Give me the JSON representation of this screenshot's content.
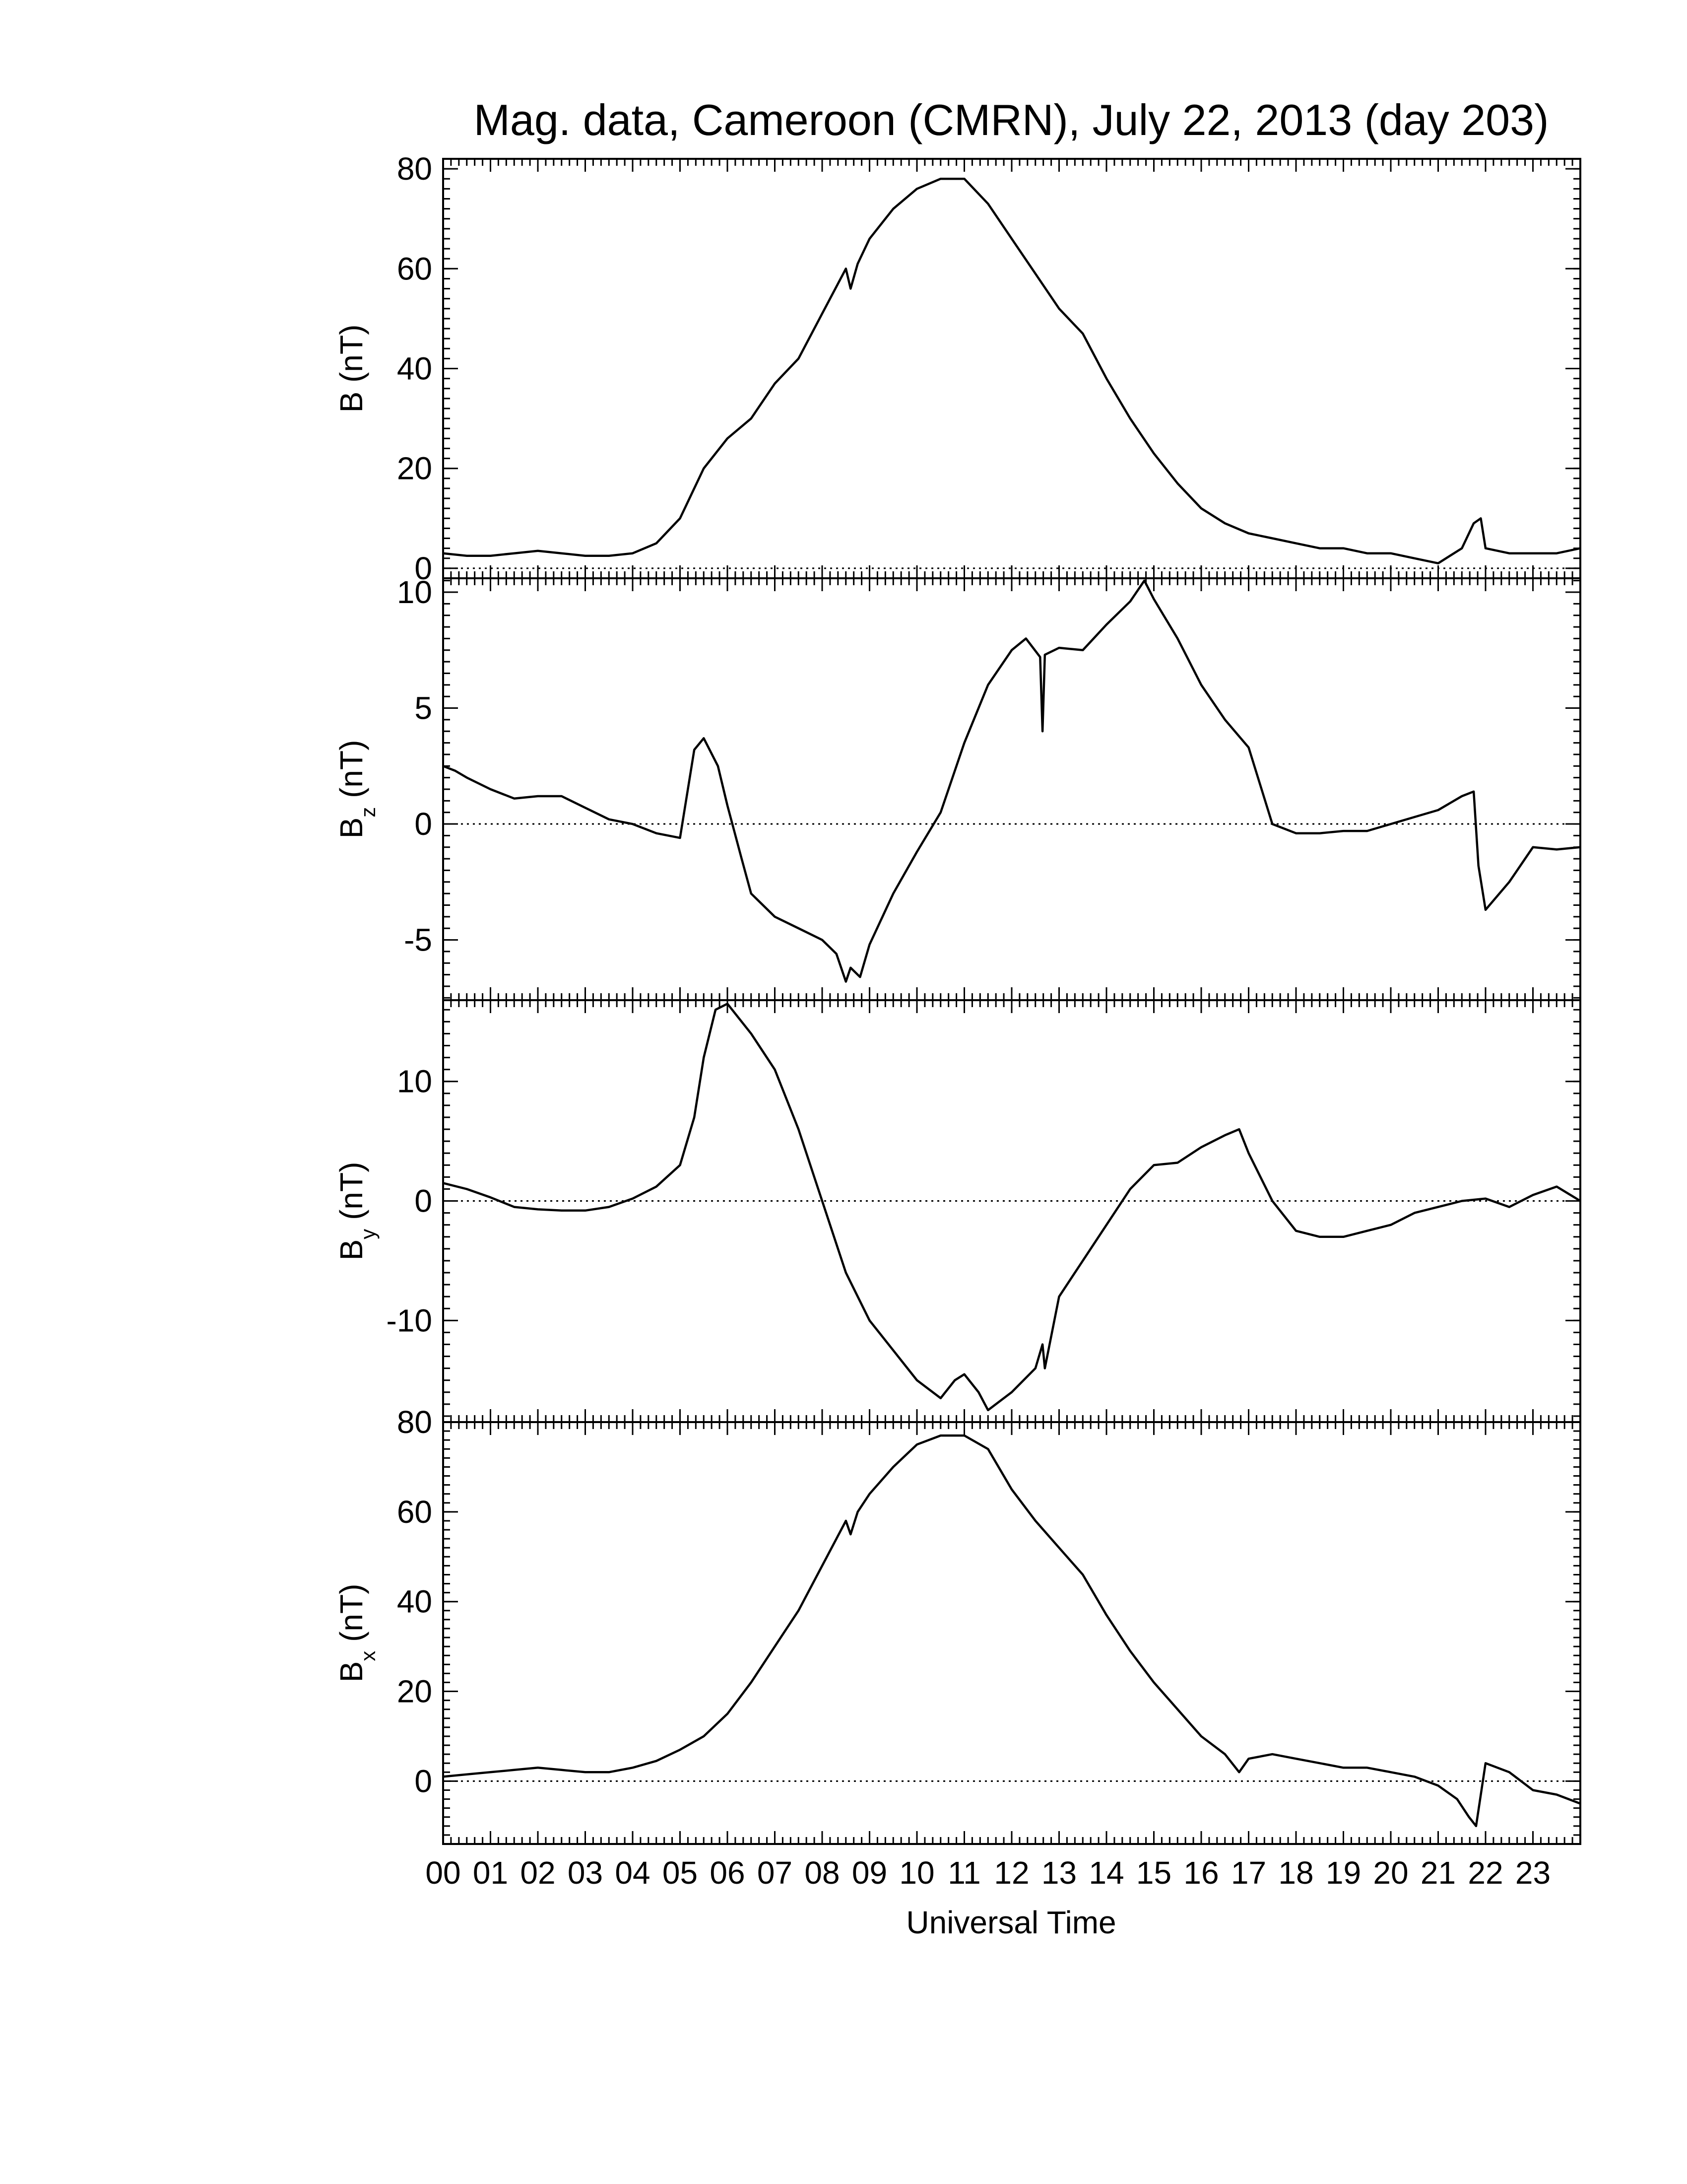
{
  "figure": {
    "title": "Mag. data, Cameroon (CMRN), July 22, 2013 (day 203)",
    "xlabel": "Universal Time",
    "x_tick_labels": [
      "00",
      "01",
      "02",
      "03",
      "04",
      "05",
      "06",
      "07",
      "08",
      "09",
      "10",
      "11",
      "12",
      "13",
      "14",
      "15",
      "16",
      "17",
      "18",
      "19",
      "20",
      "21",
      "22",
      "23"
    ],
    "line_color": "#000000",
    "zero_line_style": "dotted"
  },
  "chart_data": [
    {
      "type": "line",
      "panel": "B",
      "ylabel_main": "B",
      "ylabel_sub": "",
      "ylabel_unit": "(nT)",
      "xlim": [
        0,
        24
      ],
      "ylim": [
        -2,
        82
      ],
      "yticks": [
        0,
        20,
        40,
        60,
        80
      ],
      "x": [
        0,
        0.5,
        1,
        1.5,
        2,
        2.5,
        3,
        3.5,
        4,
        4.5,
        5,
        5.5,
        6,
        6.5,
        7,
        7.5,
        8,
        8.5,
        8.6,
        8.75,
        9,
        9.5,
        10,
        10.5,
        11,
        11.5,
        12,
        12.5,
        13,
        13.5,
        14,
        14.5,
        15,
        15.5,
        16,
        16.5,
        17,
        17.5,
        18,
        18.5,
        19,
        19.5,
        20,
        20.5,
        21,
        21.5,
        21.75,
        21.9,
        22,
        22.5,
        23,
        23.5,
        24
      ],
      "y": [
        3,
        2.5,
        2.5,
        3,
        3.5,
        3,
        2.5,
        2.5,
        3,
        5,
        10,
        20,
        26,
        30,
        37,
        42,
        51,
        60,
        56,
        61,
        66,
        72,
        76,
        78,
        78,
        73,
        66,
        59,
        52,
        47,
        38,
        30,
        23,
        17,
        12,
        9,
        7,
        6,
        5,
        4,
        4,
        3,
        3,
        2,
        1,
        4,
        9,
        10,
        4,
        3,
        3,
        3,
        4
      ]
    },
    {
      "type": "line",
      "panel": "Bz",
      "ylabel_main": "B",
      "ylabel_sub": "z",
      "ylabel_unit": "(nT)",
      "xlim": [
        0,
        24
      ],
      "ylim": [
        -7.6,
        10.6
      ],
      "yticks": [
        -5,
        0,
        5,
        10
      ],
      "x": [
        0,
        0.25,
        0.5,
        1,
        1.5,
        2,
        2.5,
        3,
        3.5,
        4,
        4.5,
        5,
        5.3,
        5.5,
        5.8,
        6,
        6.3,
        6.5,
        7,
        7.5,
        8,
        8.3,
        8.5,
        8.6,
        8.8,
        9,
        9.5,
        10,
        10.5,
        11,
        11.5,
        12,
        12.3,
        12.6,
        12.65,
        12.7,
        13,
        13.5,
        14,
        14.5,
        14.8,
        15,
        15.5,
        16,
        16.5,
        17,
        17.5,
        18,
        18.5,
        19,
        19.5,
        20,
        20.5,
        21,
        21.5,
        21.75,
        21.85,
        22,
        22.5,
        23,
        23.5,
        24
      ],
      "y": [
        2.5,
        2.3,
        2,
        1.5,
        1.1,
        1.2,
        1.2,
        0.7,
        0.2,
        0,
        -0.4,
        -0.6,
        3.2,
        3.7,
        2.5,
        0.8,
        -1.5,
        -3,
        -4,
        -4.5,
        -5,
        -5.6,
        -6.8,
        -6.2,
        -6.6,
        -5.2,
        -3,
        -1.2,
        0.5,
        3.5,
        6,
        7.5,
        8,
        7.2,
        4,
        7.3,
        7.6,
        7.5,
        8.6,
        9.6,
        10.5,
        9.7,
        8,
        6,
        4.5,
        3.3,
        0,
        -0.4,
        -0.4,
        -0.3,
        -0.3,
        0,
        0.3,
        0.6,
        1.2,
        1.4,
        -1.8,
        -3.7,
        -2.5,
        -1,
        -1.1,
        -1
      ]
    },
    {
      "type": "line",
      "panel": "By",
      "ylabel_main": "B",
      "ylabel_sub": "y",
      "ylabel_unit": "(nT)",
      "xlim": [
        0,
        24
      ],
      "ylim": [
        -18.5,
        16.8
      ],
      "yticks": [
        -10,
        0,
        10
      ],
      "x": [
        0,
        0.5,
        1,
        1.5,
        2,
        2.5,
        3,
        3.5,
        4,
        4.5,
        5,
        5.3,
        5.5,
        5.75,
        6,
        6.5,
        7,
        7.5,
        8,
        8.5,
        9,
        9.5,
        10,
        10.5,
        10.8,
        11,
        11.3,
        11.5,
        12,
        12.5,
        12.65,
        12.7,
        13,
        13.5,
        14,
        14.5,
        15,
        15.5,
        16,
        16.5,
        16.8,
        17,
        17.5,
        18,
        18.5,
        19,
        19.5,
        20,
        20.5,
        21,
        21.5,
        22,
        22.5,
        23,
        23.5,
        24
      ],
      "y": [
        1.5,
        1,
        0.3,
        -0.5,
        -0.7,
        -0.8,
        -0.8,
        -0.5,
        0.2,
        1.2,
        3,
        7,
        12,
        16,
        16.5,
        14,
        11,
        6,
        0,
        -6,
        -10,
        -12.5,
        -15,
        -16.5,
        -15,
        -14.5,
        -16,
        -17.5,
        -16,
        -14,
        -12,
        -14,
        -8,
        -5,
        -2,
        1,
        3,
        3.2,
        4.5,
        5.5,
        6,
        4,
        0,
        -2.5,
        -3,
        -3,
        -2.5,
        -2,
        -1,
        -0.5,
        0,
        0.2,
        -0.5,
        0.5,
        1.2,
        0
      ]
    },
    {
      "type": "line",
      "panel": "Bx",
      "ylabel_main": "B",
      "ylabel_sub": "x",
      "ylabel_unit": "(nT)",
      "xlim": [
        0,
        24
      ],
      "ylim": [
        -14,
        80
      ],
      "yticks": [
        0,
        20,
        40,
        60,
        80
      ],
      "x": [
        0,
        0.5,
        1,
        1.5,
        2,
        2.5,
        3,
        3.5,
        4,
        4.5,
        5,
        5.5,
        6,
        6.5,
        7,
        7.5,
        8,
        8.5,
        8.6,
        8.75,
        9,
        9.5,
        10,
        10.5,
        11,
        11.5,
        12,
        12.5,
        13,
        13.5,
        14,
        14.5,
        15,
        15.5,
        16,
        16.5,
        16.8,
        17,
        17.5,
        18,
        18.5,
        19,
        19.5,
        20,
        20.5,
        21,
        21.4,
        21.65,
        21.8,
        22,
        22.5,
        23,
        23.5,
        24
      ],
      "y": [
        1,
        1.5,
        2,
        2.5,
        3,
        2.5,
        2,
        2,
        3,
        4.5,
        7,
        10,
        15,
        22,
        30,
        38,
        48,
        58,
        55,
        60,
        64,
        70,
        75,
        77,
        77,
        74,
        65,
        58,
        52,
        46,
        37,
        29,
        22,
        16,
        10,
        6,
        2,
        5,
        6,
        5,
        4,
        3,
        3,
        2,
        1,
        -1,
        -4,
        -8,
        -10,
        4,
        2,
        -2,
        -3,
        -5
      ]
    }
  ]
}
